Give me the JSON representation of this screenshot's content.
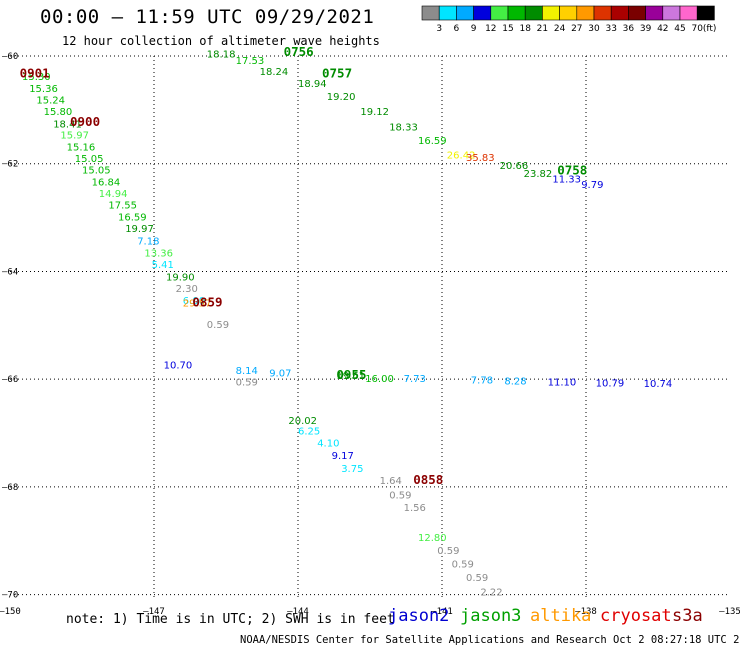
{
  "header": {
    "title": "00:00 – 11:59 UTC 09/29/2021",
    "subtitle": "12 hour collection of altimeter wave heights"
  },
  "footer": {
    "note": "note: 1) Time is in UTC; 2) SWH is in feet",
    "credit": "NOAA/NESDIS Center for Satellite Applications and Research   Oct  2 08:27:18 UTC 2021",
    "satellites": [
      {
        "name": "jason2",
        "color": "#0000d0"
      },
      {
        "name": "jason3",
        "color": "#00a000"
      },
      {
        "name": "altika",
        "color": "#ff9900"
      },
      {
        "name": "cryosat",
        "color": "#e00000"
      },
      {
        "name": "s3a",
        "color": "#8b0000"
      }
    ]
  },
  "chart_data": {
    "type": "scatter",
    "title": "00:00 – 11:59 UTC 09/29/2021",
    "subtitle": "12 hour collection of altimeter wave heights",
    "xlim": [
      -150,
      -135
    ],
    "ylim": [
      -70.1,
      -60.0
    ],
    "x_ticks": [
      -150,
      -147,
      -144,
      -141,
      -138,
      -135
    ],
    "y_ticks": [
      -60,
      -62,
      -64,
      -66,
      -68,
      -70
    ],
    "grid": true,
    "legend": {
      "placement": "top-right",
      "unit": "(ft)",
      "bins": [
        {
          "label": "3",
          "color": "#8c8c8c"
        },
        {
          "label": "6",
          "color": "#00e5ff"
        },
        {
          "label": "9",
          "color": "#00aaff"
        },
        {
          "label": "12",
          "color": "#0000dd"
        },
        {
          "label": "15",
          "color": "#44ee44"
        },
        {
          "label": "18",
          "color": "#00b800"
        },
        {
          "label": "21",
          "color": "#008c00"
        },
        {
          "label": "24",
          "color": "#f2f200"
        },
        {
          "label": "27",
          "color": "#ffd000"
        },
        {
          "label": "30",
          "color": "#ff9900"
        },
        {
          "label": "33",
          "color": "#dd3300"
        },
        {
          "label": "36",
          "color": "#aa0000"
        },
        {
          "label": "39",
          "color": "#7a0000"
        },
        {
          "label": "42",
          "color": "#990099"
        },
        {
          "label": "45",
          "color": "#cc77dd"
        },
        {
          "label": "70",
          "color": "#ff66cc"
        },
        {
          "label": "",
          "color": "#000000"
        }
      ]
    },
    "time_labels": [
      {
        "text": "0901",
        "lon": -149.8,
        "lat": -60.4,
        "color": "#8b0000"
      },
      {
        "text": "0900",
        "lon": -148.75,
        "lat": -61.3,
        "color": "#8b0000"
      },
      {
        "text": "0859",
        "lon": -146.2,
        "lat": -64.65,
        "color": "#8b0000"
      },
      {
        "text": "0858",
        "lon": -141.6,
        "lat": -67.95,
        "color": "#8b0000"
      },
      {
        "text": "0756",
        "lon": -144.3,
        "lat": -60.0,
        "color": "#008c00"
      },
      {
        "text": "0757",
        "lon": -143.5,
        "lat": -60.4,
        "color": "#008c00"
      },
      {
        "text": "0758",
        "lon": -138.6,
        "lat": -62.2,
        "color": "#008c00"
      },
      {
        "text": "0955",
        "lon": -143.2,
        "lat": -66.0,
        "color": "#008c00"
      }
    ],
    "series": [
      {
        "name": "0900 pass",
        "points": [
          {
            "lon": -149.75,
            "lat": -60.45,
            "swh": "15.30",
            "color": "#00b800"
          },
          {
            "lon": -149.6,
            "lat": -60.67,
            "swh": "15.36",
            "color": "#00b800"
          },
          {
            "lon": -149.45,
            "lat": -60.88,
            "swh": "15.24",
            "color": "#00b800"
          },
          {
            "lon": -149.3,
            "lat": -61.1,
            "swh": "15.80",
            "color": "#00b800"
          },
          {
            "lon": -149.1,
            "lat": -61.33,
            "swh": "18.41",
            "color": "#008c00"
          },
          {
            "lon": -148.95,
            "lat": -61.53,
            "swh": "15.97",
            "color": "#44ee44"
          },
          {
            "lon": -148.82,
            "lat": -61.75,
            "swh": "15.16",
            "color": "#00b800"
          },
          {
            "lon": -148.65,
            "lat": -61.97,
            "swh": "15.05",
            "color": "#00b800"
          },
          {
            "lon": -148.5,
            "lat": -62.18,
            "swh": "15.05",
            "color": "#00b800"
          },
          {
            "lon": -148.3,
            "lat": -62.4,
            "swh": "16.84",
            "color": "#00b800"
          },
          {
            "lon": -148.15,
            "lat": -62.62,
            "swh": "14.94",
            "color": "#44ee44"
          },
          {
            "lon": -147.95,
            "lat": -62.83,
            "swh": "17.55",
            "color": "#00b800"
          },
          {
            "lon": -147.75,
            "lat": -63.05,
            "swh": "16.59",
            "color": "#00b800"
          },
          {
            "lon": -147.6,
            "lat": -63.27,
            "swh": "19.97",
            "color": "#008c00"
          },
          {
            "lon": -147.35,
            "lat": -63.5,
            "swh": "7.18",
            "color": "#00aaff"
          },
          {
            "lon": -147.2,
            "lat": -63.72,
            "swh": "13.36",
            "color": "#44ee44"
          },
          {
            "lon": -147.05,
            "lat": -63.94,
            "swh": "5.41",
            "color": "#00e5ff"
          },
          {
            "lon": -146.75,
            "lat": -64.17,
            "swh": "19.90",
            "color": "#008c00"
          },
          {
            "lon": -146.55,
            "lat": -64.38,
            "swh": "2.30",
            "color": "#8c8c8c"
          },
          {
            "lon": -146.4,
            "lat": -64.6,
            "swh": "6.00",
            "color": "#00e5ff"
          },
          {
            "lon": -146.4,
            "lat": -64.65,
            "swh": "29.57",
            "color": "#ff9900"
          },
          {
            "lon": -145.9,
            "lat": -65.05,
            "swh": "0.59",
            "color": "#8c8c8c"
          }
        ]
      },
      {
        "name": "0756 pass",
        "points": [
          {
            "lon": -145.9,
            "lat": -60.03,
            "swh": "18.18",
            "color": "#008c00"
          },
          {
            "lon": -145.3,
            "lat": -60.15,
            "swh": "17.53",
            "color": "#00b800"
          },
          {
            "lon": -144.8,
            "lat": -60.35,
            "swh": "18.24",
            "color": "#008c00"
          },
          {
            "lon": -144.0,
            "lat": -60.58,
            "swh": "18.94",
            "color": "#008c00"
          },
          {
            "lon": -143.4,
            "lat": -60.82,
            "swh": "19.20",
            "color": "#008c00"
          },
          {
            "lon": -142.7,
            "lat": -61.1,
            "swh": "19.12",
            "color": "#008c00"
          },
          {
            "lon": -142.1,
            "lat": -61.38,
            "swh": "18.33",
            "color": "#008c00"
          },
          {
            "lon": -141.5,
            "lat": -61.63,
            "swh": "16.59",
            "color": "#00b800"
          },
          {
            "lon": -140.9,
            "lat": -61.9,
            "swh": "26.42",
            "color": "#f2f200"
          },
          {
            "lon": -140.5,
            "lat": -61.95,
            "swh": "35.83",
            "color": "#dd3300"
          },
          {
            "lon": -139.8,
            "lat": -62.1,
            "swh": "20.66",
            "color": "#008c00"
          },
          {
            "lon": -139.3,
            "lat": -62.25,
            "swh": "23.82",
            "color": "#008c00"
          },
          {
            "lon": -138.7,
            "lat": -62.35,
            "swh": "11.33",
            "color": "#0000dd"
          },
          {
            "lon": -138.1,
            "lat": -62.45,
            "swh": "9.79",
            "color": "#0000dd"
          }
        ]
      },
      {
        "name": "0955 pass",
        "points": [
          {
            "lon": -146.8,
            "lat": -65.8,
            "swh": "10.70",
            "color": "#0000dd"
          },
          {
            "lon": -145.3,
            "lat": -65.9,
            "swh": "8.14",
            "color": "#00aaff"
          },
          {
            "lon": -144.6,
            "lat": -65.95,
            "swh": "9.07",
            "color": "#00aaff"
          },
          {
            "lon": -143.2,
            "lat": -66.0,
            "swh": "19.61",
            "color": "#008c00"
          },
          {
            "lon": -142.6,
            "lat": -66.05,
            "swh": "16.00",
            "color": "#00b800"
          },
          {
            "lon": -141.8,
            "lat": -66.05,
            "swh": "7.73",
            "color": "#00aaff"
          },
          {
            "lon": -140.4,
            "lat": -66.08,
            "swh": "7.78",
            "color": "#00aaff"
          },
          {
            "lon": -139.7,
            "lat": -66.1,
            "swh": "8.28",
            "color": "#00aaff"
          },
          {
            "lon": -138.8,
            "lat": -66.12,
            "swh": "11.10",
            "color": "#0000dd"
          },
          {
            "lon": -137.8,
            "lat": -66.14,
            "swh": "10.79",
            "color": "#0000dd"
          },
          {
            "lon": -136.8,
            "lat": -66.15,
            "swh": "10.74",
            "color": "#0000dd"
          },
          {
            "lon": -145.3,
            "lat": -66.12,
            "swh": "0.59",
            "color": "#8c8c8c"
          }
        ]
      },
      {
        "name": "0858 pass",
        "points": [
          {
            "lon": -144.2,
            "lat": -66.83,
            "swh": "20.02",
            "color": "#008c00"
          },
          {
            "lon": -144.0,
            "lat": -67.03,
            "swh": "6.25",
            "color": "#00e5ff"
          },
          {
            "lon": -143.6,
            "lat": -67.25,
            "swh": "4.10",
            "color": "#00e5ff"
          },
          {
            "lon": -143.3,
            "lat": -67.48,
            "swh": "9.17",
            "color": "#0000dd"
          },
          {
            "lon": -143.1,
            "lat": -67.72,
            "swh": "3.75",
            "color": "#00e5ff"
          },
          {
            "lon": -142.3,
            "lat": -67.95,
            "swh": "1.64",
            "color": "#8c8c8c"
          },
          {
            "lon": -142.1,
            "lat": -68.22,
            "swh": "0.59",
            "color": "#8c8c8c"
          },
          {
            "lon": -141.8,
            "lat": -68.45,
            "swh": "1.56",
            "color": "#8c8c8c"
          },
          {
            "lon": -141.5,
            "lat": -69.0,
            "swh": "12.80",
            "color": "#44ee44"
          },
          {
            "lon": -141.1,
            "lat": -69.25,
            "swh": "0.59",
            "color": "#8c8c8c"
          },
          {
            "lon": -140.8,
            "lat": -69.5,
            "swh": "0.59",
            "color": "#8c8c8c"
          },
          {
            "lon": -140.5,
            "lat": -69.75,
            "swh": "0.59",
            "color": "#8c8c8c"
          },
          {
            "lon": -140.2,
            "lat": -70.02,
            "swh": "2.22",
            "color": "#8c8c8c"
          }
        ]
      }
    ]
  }
}
